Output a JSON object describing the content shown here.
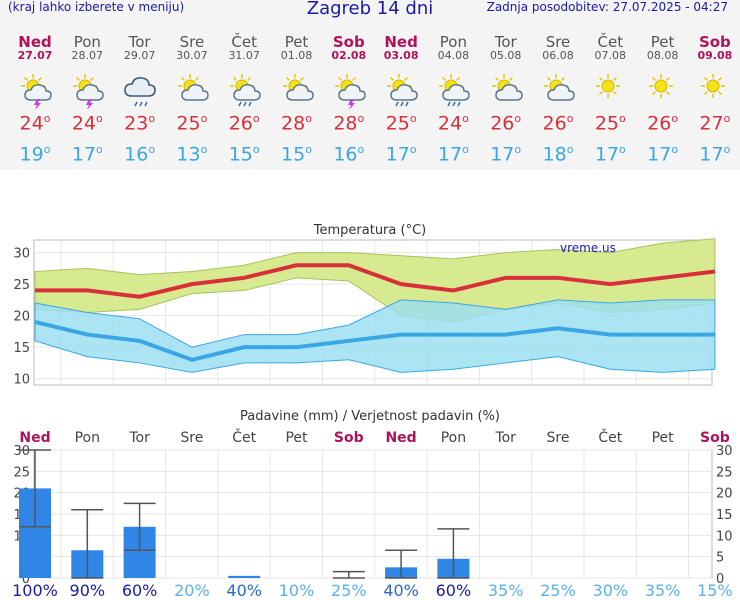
{
  "header": {
    "menu_hint": "(kraj lahko izberete v meniju)",
    "title": "Zagreb 14 dni",
    "updated": "Zadnja posodobitev: 27.07.2025 - 04:27"
  },
  "colors": {
    "max_line": "#d8303a",
    "min_line": "#3aa6e6",
    "max_band": "#d7ea8f",
    "min_band": "#9cdff0",
    "bars": "#2f86e6",
    "weekend": "#b0125a"
  },
  "days": [
    {
      "name": "Ned",
      "date": "27.07",
      "weekend": true,
      "icon": "sun-cloud-thunder-icon",
      "max": "24",
      "min": "19",
      "prob": "100%"
    },
    {
      "name": "Pon",
      "date": "28.07",
      "weekend": false,
      "icon": "sun-cloud-thunder-icon",
      "max": "24",
      "min": "17",
      "prob": "90%"
    },
    {
      "name": "Tor",
      "date": "29.07",
      "weekend": false,
      "icon": "cloud-rain-icon",
      "max": "23",
      "min": "16",
      "prob": "60%"
    },
    {
      "name": "Sre",
      "date": "30.07",
      "weekend": false,
      "icon": "sun-cloud-icon",
      "max": "25",
      "min": "13",
      "prob": "20%"
    },
    {
      "name": "Čet",
      "date": "31.07",
      "weekend": false,
      "icon": "sun-cloud-rain-icon",
      "max": "26",
      "min": "15",
      "prob": "40%"
    },
    {
      "name": "Pet",
      "date": "01.08",
      "weekend": false,
      "icon": "sun-cloud-icon",
      "max": "28",
      "min": "15",
      "prob": "10%"
    },
    {
      "name": "Sob",
      "date": "02.08",
      "weekend": true,
      "icon": "sun-cloud-thunder-icon",
      "max": "28",
      "min": "16",
      "prob": "25%"
    },
    {
      "name": "Ned",
      "date": "03.08",
      "weekend": true,
      "icon": "sun-cloud-rain-icon",
      "max": "25",
      "min": "17",
      "prob": "40%"
    },
    {
      "name": "Pon",
      "date": "04.08",
      "weekend": false,
      "icon": "sun-cloud-rain-icon",
      "max": "24",
      "min": "17",
      "prob": "60%"
    },
    {
      "name": "Tor",
      "date": "05.08",
      "weekend": false,
      "icon": "sun-cloud-icon",
      "max": "26",
      "min": "17",
      "prob": "35%"
    },
    {
      "name": "Sre",
      "date": "06.08",
      "weekend": false,
      "icon": "sun-cloud-icon",
      "max": "26",
      "min": "18",
      "prob": "25%"
    },
    {
      "name": "Čet",
      "date": "07.08",
      "weekend": false,
      "icon": "sun-icon",
      "max": "25",
      "min": "17",
      "prob": "30%"
    },
    {
      "name": "Pet",
      "date": "08.08",
      "weekend": false,
      "icon": "sun-icon",
      "max": "26",
      "min": "17",
      "prob": "35%"
    },
    {
      "name": "Sob",
      "date": "09.08",
      "weekend": true,
      "icon": "sun-icon",
      "max": "27",
      "min": "17",
      "prob": "15%"
    }
  ],
  "chart_data": [
    {
      "type": "area",
      "title": "Temperatura (°C)",
      "watermark": "vreme.us",
      "ylim": [
        9,
        32
      ],
      "yticks": [
        10,
        15,
        20,
        25,
        30
      ],
      "grid": true,
      "categories": [
        "27.07",
        "28.07",
        "29.07",
        "30.07",
        "31.07",
        "01.08",
        "02.08",
        "03.08",
        "04.08",
        "05.08",
        "06.08",
        "07.08",
        "08.08",
        "09.08"
      ],
      "series": [
        {
          "values": [
            24,
            24,
            23,
            25,
            26,
            28,
            28,
            25,
            24,
            26,
            26,
            25,
            26,
            27
          ]
        },
        {
          "values": [
            19,
            17,
            16,
            13,
            15,
            15,
            16,
            17,
            17,
            17,
            18,
            17,
            17,
            17
          ]
        }
      ],
      "bands": [
        {
          "upper": [
            27,
            27.5,
            26.5,
            27,
            28,
            30,
            30,
            29.5,
            29,
            30,
            30.5,
            30,
            31.5,
            32.2
          ],
          "lower": [
            21,
            20.5,
            21,
            23.5,
            24,
            26,
            25.5,
            20,
            19,
            21,
            22,
            20.5,
            21,
            22
          ]
        },
        {
          "upper": [
            22,
            20.5,
            19.5,
            15,
            17,
            17,
            18.5,
            22.5,
            22,
            21,
            22.5,
            22,
            22.5,
            22.5
          ],
          "lower": [
            16,
            13.5,
            12.5,
            11,
            12.5,
            12.5,
            13,
            11,
            11.5,
            12.5,
            13.5,
            11.5,
            11,
            11.5
          ]
        }
      ]
    },
    {
      "type": "bar",
      "title": "Padavine (mm) / Verjetnost padavin (%)",
      "ylim": [
        0,
        30
      ],
      "yticks": [
        0,
        5,
        10,
        15,
        20,
        25,
        30
      ],
      "grid": true,
      "categories": [
        "Ned",
        "Pon",
        "Tor",
        "Sre",
        "Čet",
        "Pet",
        "Sob",
        "Ned",
        "Pon",
        "Tor",
        "Sre",
        "Čet",
        "Pet",
        "Sob"
      ],
      "values": [
        21,
        6.5,
        12,
        0,
        0.5,
        0,
        0,
        2.5,
        4.5,
        0,
        0,
        0,
        0,
        0
      ],
      "error_low": [
        12,
        0,
        6.5,
        0,
        0,
        0,
        0,
        0,
        0,
        0,
        0,
        0,
        0,
        0
      ],
      "error_high": [
        30,
        16,
        17.5,
        0,
        0,
        0,
        1.5,
        6.5,
        11.5,
        0,
        0,
        0,
        0,
        0
      ],
      "probabilities": [
        "100%",
        "90%",
        "60%",
        "20%",
        "40%",
        "10%",
        "25%",
        "40%",
        "60%",
        "35%",
        "25%",
        "30%",
        "35%",
        "15%"
      ]
    }
  ]
}
